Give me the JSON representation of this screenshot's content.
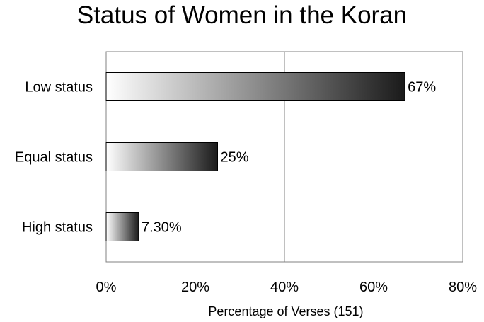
{
  "chart_data": {
    "type": "bar",
    "orientation": "horizontal",
    "title": "Status of Women in the Koran",
    "xlabel": "Percentage of Verses (151)",
    "ylabel": "",
    "categories": [
      "Low status",
      "Equal status",
      "High status"
    ],
    "values": [
      67,
      25,
      7.3
    ],
    "data_labels": [
      "67%",
      "25%",
      "7.30%"
    ],
    "xlim": [
      0,
      80
    ],
    "x_ticks": [
      0,
      20,
      40,
      60,
      80
    ],
    "x_tick_labels": [
      "0%",
      "20%",
      "40%",
      "60%",
      "80%"
    ],
    "grid": "vertical at 40%",
    "legend": "none",
    "bar_fill": "gradient white to black"
  }
}
